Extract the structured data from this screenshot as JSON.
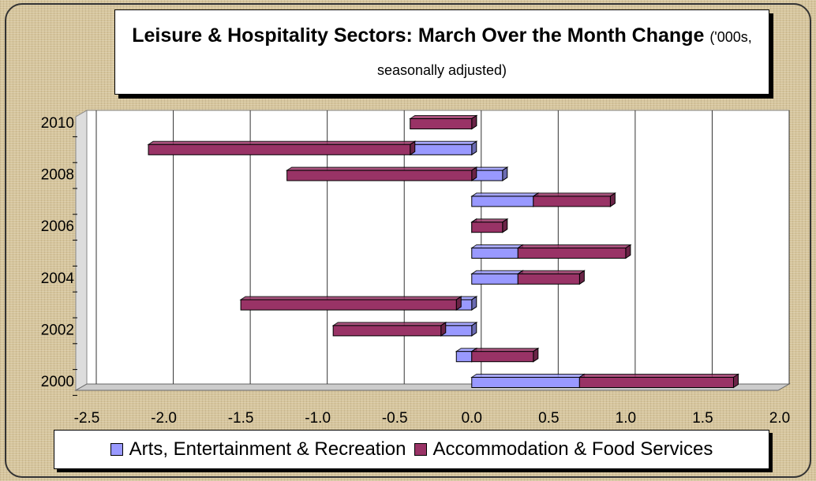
{
  "chart_data": {
    "type": "bar",
    "orientation": "horizontal",
    "stacked": true,
    "title": "Leisure & Hospitality Sectors: March Over the Month Change",
    "subtitle": "('000s, seasonally adjusted)",
    "categories": [
      "2000",
      null,
      "2002",
      null,
      "2004",
      null,
      "2006",
      null,
      "2008",
      null,
      "2010"
    ],
    "series": [
      {
        "name": "Arts, Entertainment & Recreation",
        "color": "#9999ff",
        "values": [
          0.7,
          -0.1,
          -0.2,
          -0.1,
          0.3,
          0.3,
          0.0,
          0.4,
          0.2,
          -0.4,
          0.0
        ]
      },
      {
        "name": "Accommodation & Food Services",
        "color": "#993366",
        "values": [
          1.0,
          0.4,
          -0.7,
          -1.4,
          0.4,
          0.7,
          0.2,
          0.5,
          -1.2,
          -1.7,
          -0.4
        ]
      }
    ],
    "xlim": [
      -2.5,
      2.0
    ],
    "xticks": [
      -2.5,
      {
        "value": -2,
        "label": "-2.0"
      },
      -1.5,
      {
        "value": -1,
        "label": "-1.0"
      },
      -0.5,
      {
        "value": 0,
        "label": "0.0"
      },
      0.5,
      {
        "value": 1,
        "label": "1.0"
      },
      1.5,
      {
        "value": 2,
        "label": "2.0"
      }
    ],
    "grid": true,
    "legend": "bottom"
  }
}
